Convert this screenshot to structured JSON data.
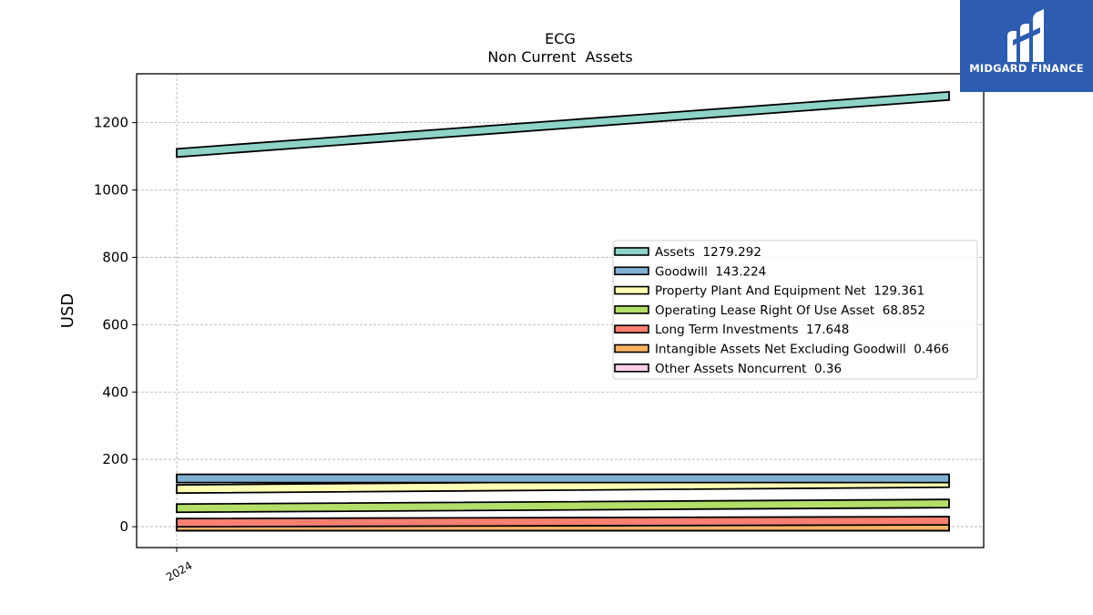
{
  "chart_data": {
    "type": "line",
    "title": "ECG",
    "subtitle": "Non Current  Assets",
    "xlabel": "",
    "ylabel": "USD",
    "x_tick_labels": [
      "2024"
    ],
    "x": [
      "2024-01",
      "2024-12"
    ],
    "ylim": [
      -62,
      1345
    ],
    "y_ticks": [
      0,
      200,
      400,
      600,
      800,
      1000,
      1200
    ],
    "grid": true,
    "legend_position": "center-right",
    "series": [
      {
        "name": "Assets",
        "latest_label": "1279.292",
        "values": [
          1110,
          1279.292
        ],
        "color": "#8dd3c7"
      },
      {
        "name": "Goodwill",
        "latest_label": "143.224",
        "values": [
          143.224,
          143.224
        ],
        "color": "#80b1d3"
      },
      {
        "name": "Property Plant And Equipment Net",
        "latest_label": "129.361",
        "values": [
          112,
          129.361
        ],
        "color": "#ffffb3"
      },
      {
        "name": "Operating Lease Right Of Use Asset",
        "latest_label": "68.852",
        "values": [
          55,
          68.852
        ],
        "color": "#b3de69"
      },
      {
        "name": "Long Term Investments",
        "latest_label": "17.648",
        "values": [
          12,
          17.648
        ],
        "color": "#fb8072"
      },
      {
        "name": "Intangible Assets Net Excluding Goodwill",
        "latest_label": "0.466",
        "values": [
          0.6,
          0.466
        ],
        "color": "#fdb462"
      },
      {
        "name": "Other Assets Noncurrent",
        "latest_label": "0.36",
        "values": [
          0.36,
          0.36
        ],
        "color": "#fccde5"
      }
    ]
  },
  "brand": {
    "name": "MIDGARD FINANCE",
    "background": "#2d5cb0",
    "text_color": "#ffffff"
  }
}
